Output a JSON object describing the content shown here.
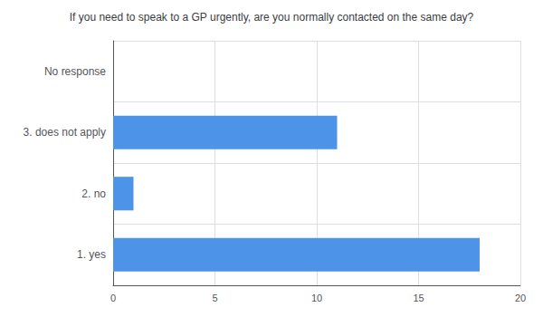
{
  "chart_data": {
    "type": "bar",
    "orientation": "horizontal",
    "title": "If you need to speak to a GP urgently, are you normally contacted on the same day?",
    "categories": [
      "1. yes",
      "2. no",
      "3. does not apply",
      "No response"
    ],
    "values": [
      18,
      1,
      11,
      0
    ],
    "color": "#4d94e8",
    "xlim": [
      0,
      20
    ],
    "xticks": [
      0,
      5,
      10,
      15,
      20
    ],
    "grid": true
  }
}
